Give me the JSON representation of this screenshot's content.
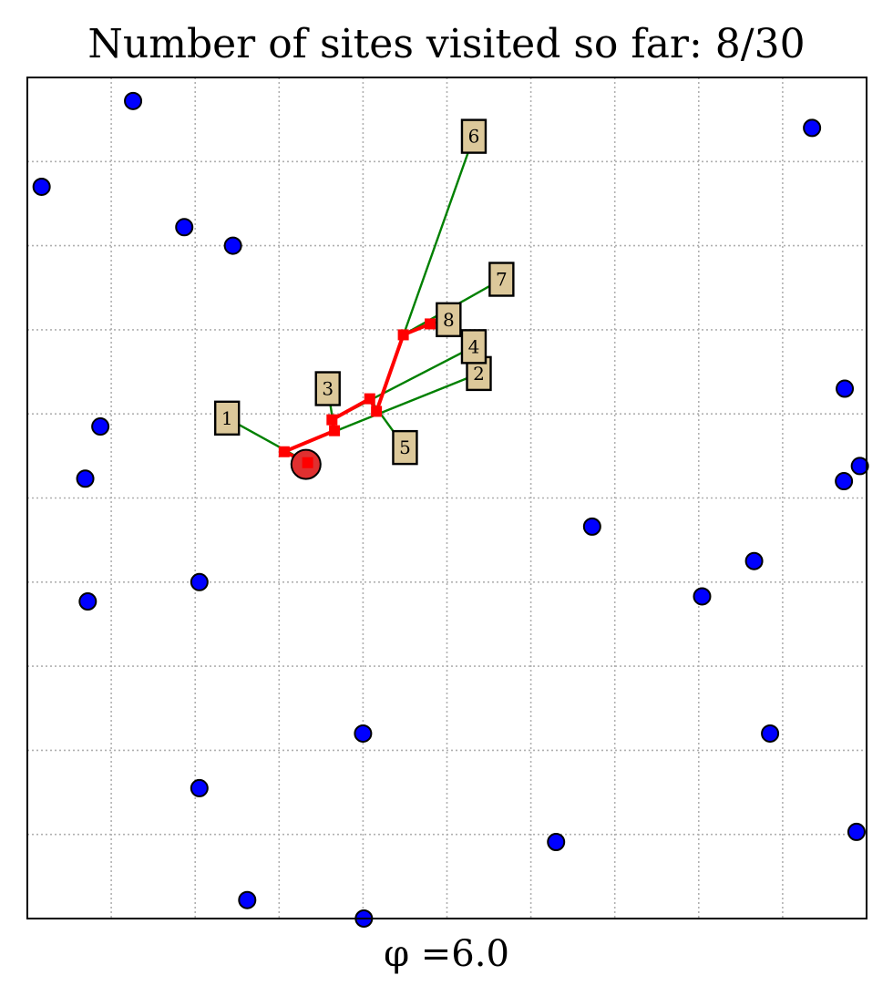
{
  "chart_data": {
    "type": "scatter",
    "title": "Number of sites visited so far: 8/30",
    "xlabel": "φ =6.0",
    "ylabel": "",
    "xlim": [
      0,
      10
    ],
    "ylim": [
      0,
      10
    ],
    "grid": true,
    "legend": "none",
    "colors": {
      "sites": "#0000ff",
      "path": "#ff0000",
      "walker": "#e03030",
      "links": "#008000",
      "label_box": "#dcc89a",
      "grid": "#b0b0b0"
    },
    "sites": [
      {
        "x": 1.26,
        "y": 9.72
      },
      {
        "x": 9.35,
        "y": 9.4
      },
      {
        "x": 0.17,
        "y": 8.7
      },
      {
        "x": 1.87,
        "y": 8.22
      },
      {
        "x": 2.45,
        "y": 8.0
      },
      {
        "x": 9.74,
        "y": 6.3
      },
      {
        "x": 0.87,
        "y": 5.85
      },
      {
        "x": 0.69,
        "y": 5.23
      },
      {
        "x": 9.73,
        "y": 5.2
      },
      {
        "x": 9.92,
        "y": 5.38
      },
      {
        "x": 6.73,
        "y": 4.66
      },
      {
        "x": 8.66,
        "y": 4.25
      },
      {
        "x": 2.05,
        "y": 4.0
      },
      {
        "x": 8.04,
        "y": 3.83
      },
      {
        "x": 0.72,
        "y": 3.77
      },
      {
        "x": 4.0,
        "y": 2.2
      },
      {
        "x": 8.85,
        "y": 2.2
      },
      {
        "x": 2.05,
        "y": 1.55
      },
      {
        "x": 9.88,
        "y": 1.03
      },
      {
        "x": 6.3,
        "y": 0.91
      },
      {
        "x": 2.62,
        "y": 0.22
      },
      {
        "x": 4.01,
        "y": 0.0
      }
    ],
    "visited": [
      {
        "label": "1",
        "x": 2.38,
        "y": 5.95
      },
      {
        "label": "2",
        "x": 5.38,
        "y": 6.48
      },
      {
        "label": "3",
        "x": 3.58,
        "y": 6.3
      },
      {
        "label": "4",
        "x": 5.32,
        "y": 6.8
      },
      {
        "label": "5",
        "x": 4.5,
        "y": 5.6
      },
      {
        "label": "6",
        "x": 5.32,
        "y": 9.3
      },
      {
        "label": "7",
        "x": 5.65,
        "y": 7.6
      },
      {
        "label": "8",
        "x": 5.02,
        "y": 7.12
      }
    ],
    "walker_path": [
      {
        "x": 3.34,
        "y": 5.42
      },
      {
        "x": 3.06,
        "y": 5.55
      },
      {
        "x": 3.66,
        "y": 5.8
      },
      {
        "x": 3.63,
        "y": 5.93
      },
      {
        "x": 4.08,
        "y": 6.18
      },
      {
        "x": 4.16,
        "y": 6.03
      },
      {
        "x": 4.48,
        "y": 6.94
      },
      {
        "x": 4.8,
        "y": 7.07
      }
    ],
    "walker_position": {
      "x": 3.32,
      "y": 5.4
    }
  }
}
